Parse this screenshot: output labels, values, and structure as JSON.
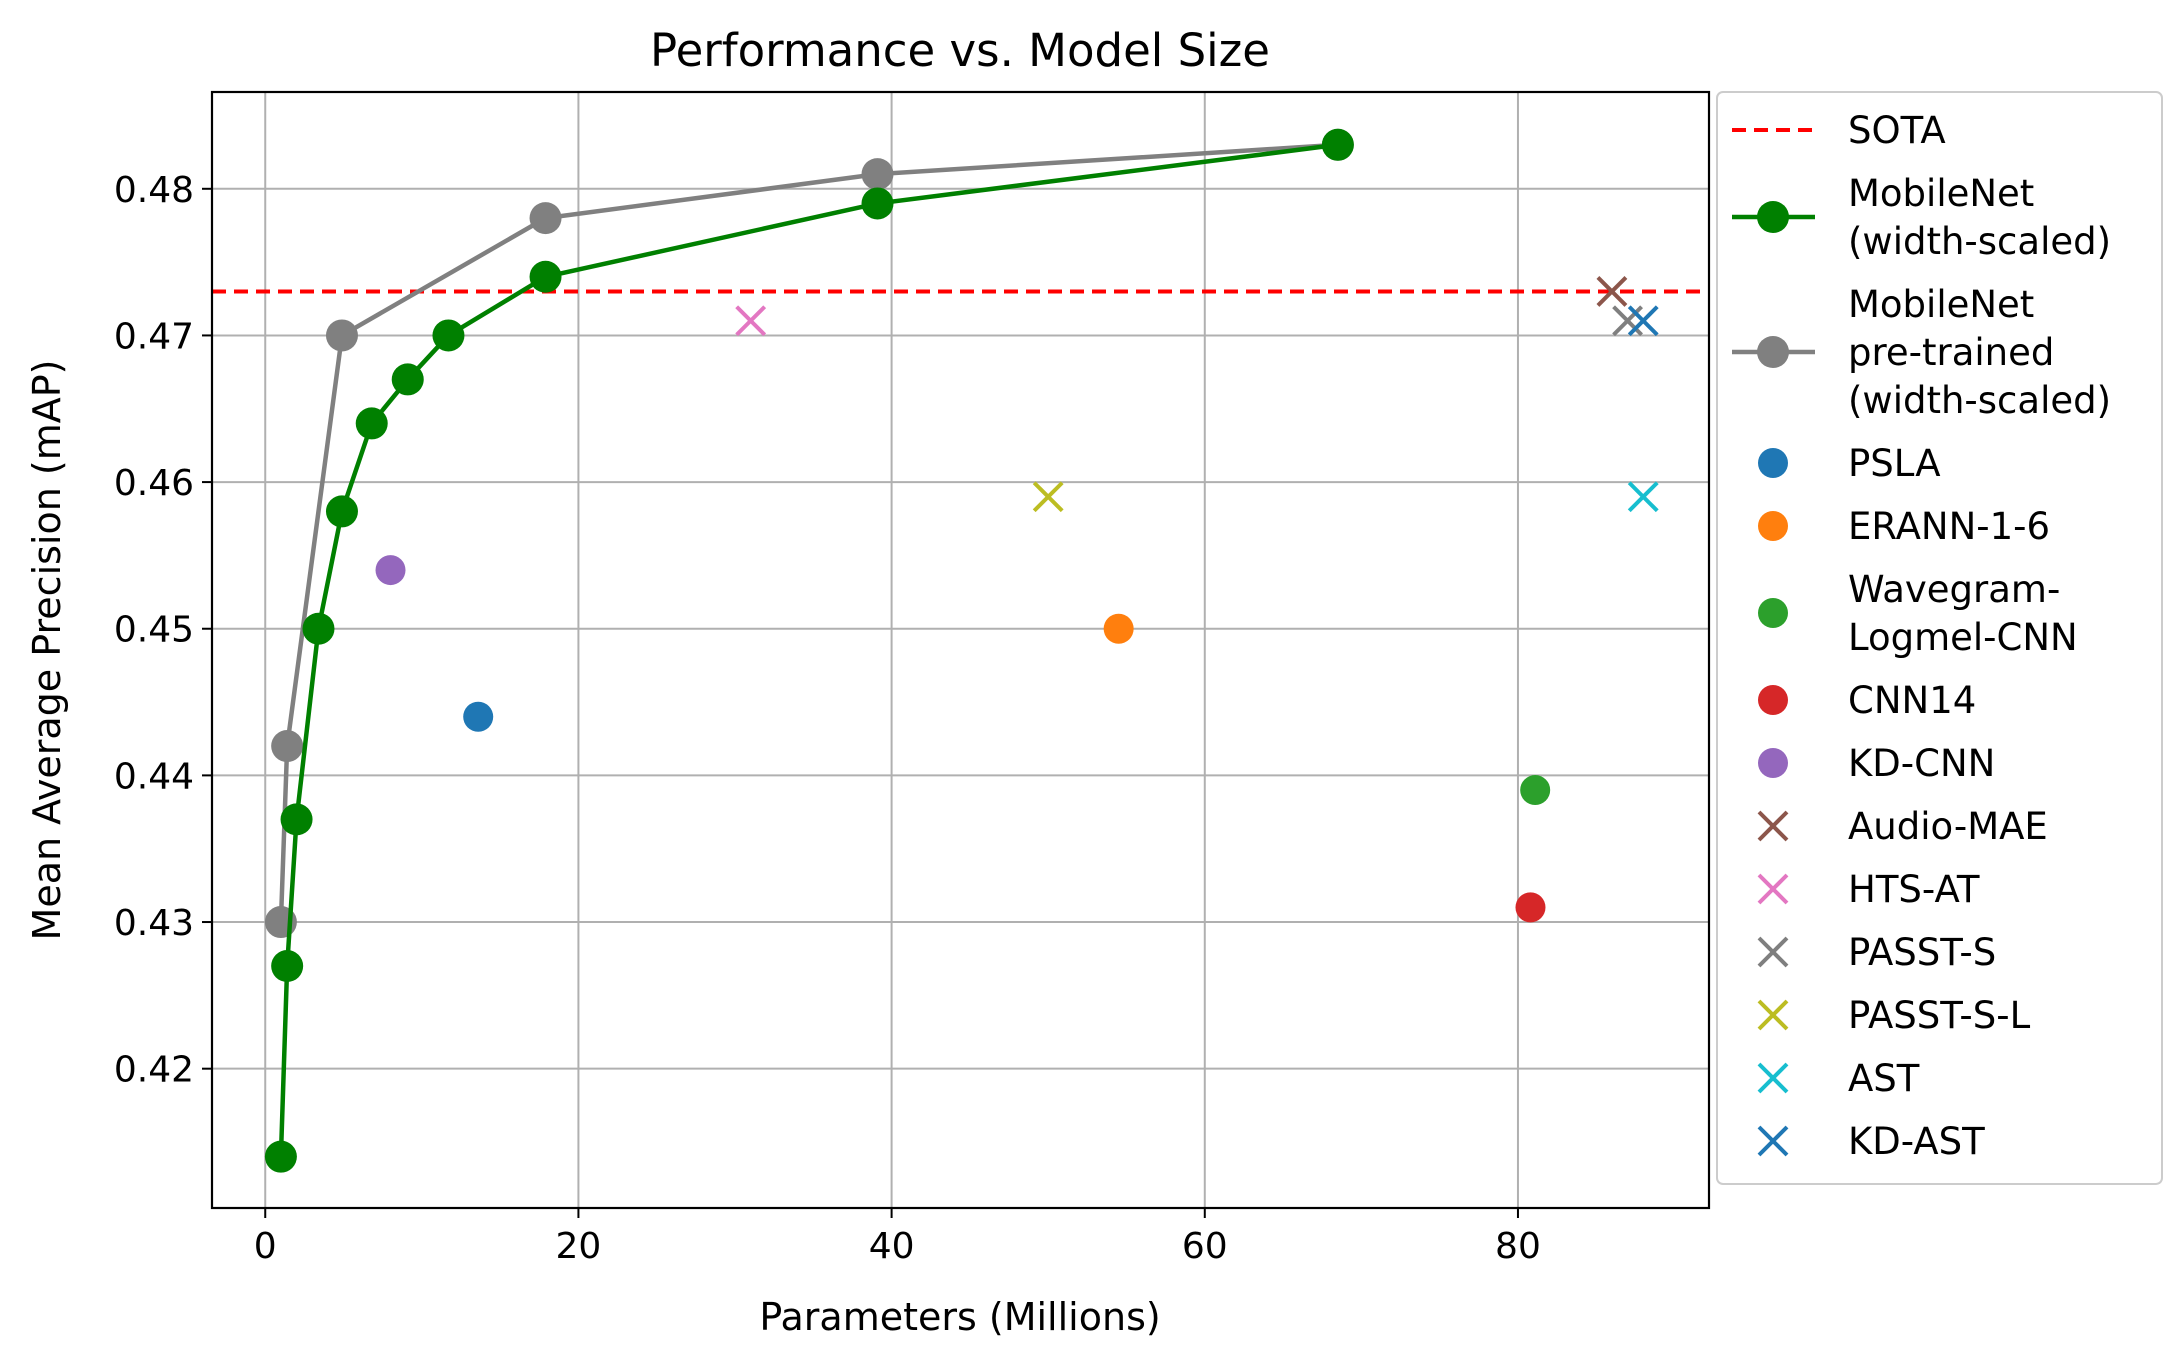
{
  "chart_data": {
    "type": "scatter",
    "title": "Performance vs. Model Size",
    "xlabel": "Parameters (Millions)",
    "ylabel": "Mean Average Precision (mAP)",
    "xlim": [
      -3.4,
      92.2
    ],
    "ylim": [
      0.4105,
      0.4866
    ],
    "xticks": [
      0,
      20,
      40,
      60,
      80
    ],
    "xtick_labels": [
      "0",
      "20",
      "40",
      "60",
      "80"
    ],
    "yticks": [
      0.42,
      0.43,
      0.44,
      0.45,
      0.46,
      0.47,
      0.48
    ],
    "ytick_labels": [
      "0.42",
      "0.43",
      "0.44",
      "0.45",
      "0.46",
      "0.47",
      "0.48"
    ],
    "grid": true,
    "legend_position": "outside-right",
    "reference_line": {
      "name": "SOTA",
      "y": 0.473,
      "color": "#ff0000",
      "style": "dashed"
    },
    "lines": [
      {
        "name": "MobileNet (width-scaled)",
        "legend_lines": [
          "MobileNet",
          "(width-scaled)"
        ],
        "color": "#008000",
        "x": [
          1.0,
          1.4,
          2.0,
          3.4,
          4.9,
          6.8,
          9.1,
          11.7,
          17.9,
          39.1,
          68.5
        ],
        "y": [
          0.414,
          0.427,
          0.437,
          0.45,
          0.458,
          0.464,
          0.467,
          0.47,
          0.474,
          0.479,
          0.483
        ]
      },
      {
        "name": "MobileNet pre-trained (width-scaled)",
        "legend_lines": [
          "MobileNet",
          "pre-trained",
          "(width-scaled)"
        ],
        "color": "#808080",
        "x": [
          1.0,
          1.4,
          4.9,
          17.9,
          39.1,
          68.5
        ],
        "y": [
          0.43,
          0.442,
          0.47,
          0.478,
          0.481,
          0.483
        ]
      }
    ],
    "points": [
      {
        "name": "PSLA",
        "legend_lines": [
          "PSLA"
        ],
        "marker": "circle",
        "color": "#1f77b4",
        "x": 13.6,
        "y": 0.444
      },
      {
        "name": "ERANN-1-6",
        "legend_lines": [
          "ERANN-1-6"
        ],
        "marker": "circle",
        "color": "#ff7f0e",
        "x": 54.5,
        "y": 0.45
      },
      {
        "name": "Wavegram-Logmel-CNN",
        "legend_lines": [
          "Wavegram-",
          "Logmel-CNN"
        ],
        "marker": "circle",
        "color": "#2ca02c",
        "x": 81.1,
        "y": 0.439
      },
      {
        "name": "CNN14",
        "legend_lines": [
          "CNN14"
        ],
        "marker": "circle",
        "color": "#d62728",
        "x": 80.8,
        "y": 0.431
      },
      {
        "name": "KD-CNN",
        "legend_lines": [
          "KD-CNN"
        ],
        "marker": "circle",
        "color": "#9467bd",
        "x": 8.0,
        "y": 0.454
      },
      {
        "name": "Audio-MAE",
        "legend_lines": [
          "Audio-MAE"
        ],
        "marker": "x",
        "color": "#8c564b",
        "x": 86.0,
        "y": 0.473
      },
      {
        "name": "HTS-AT",
        "legend_lines": [
          "HTS-AT"
        ],
        "marker": "x",
        "color": "#e377c2",
        "x": 31.0,
        "y": 0.471
      },
      {
        "name": "PASST-S",
        "legend_lines": [
          "PASST-S"
        ],
        "marker": "x",
        "color": "#7f7f7f",
        "x": 87.0,
        "y": 0.471
      },
      {
        "name": "PASST-S-L",
        "legend_lines": [
          "PASST-S-L"
        ],
        "marker": "x",
        "color": "#bcbd22",
        "x": 50.0,
        "y": 0.459
      },
      {
        "name": "AST",
        "legend_lines": [
          "AST"
        ],
        "marker": "x",
        "color": "#17becf",
        "x": 88.0,
        "y": 0.459
      },
      {
        "name": "KD-AST",
        "legend_lines": [
          "KD-AST"
        ],
        "marker": "x",
        "color": "#1f77b4",
        "x": 88.0,
        "y": 0.471
      }
    ]
  }
}
